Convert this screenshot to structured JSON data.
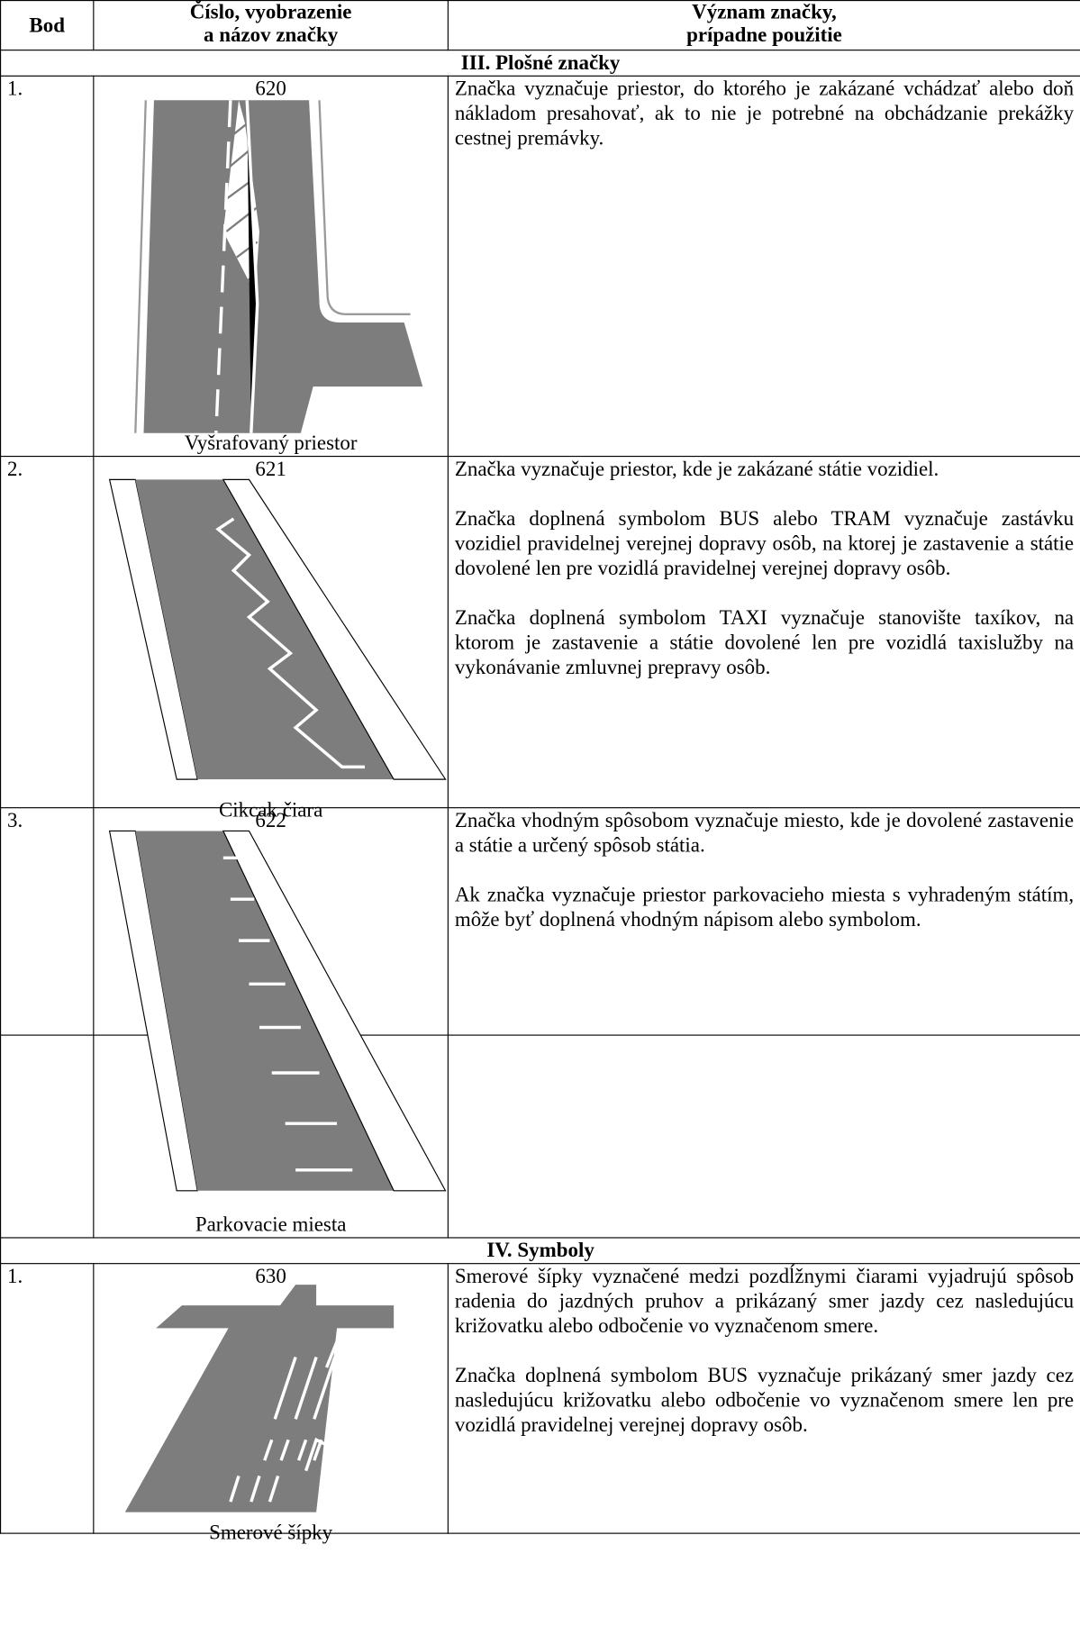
{
  "table": {
    "header": [
      "Bod",
      "Číslo, vyobrazenie\na názov značky",
      "Význam značky,\nprípadne použitie"
    ],
    "sections": [
      {
        "title": "III. Plošné značky",
        "rows": [
          {
            "bod": "1.",
            "number": "620",
            "name": "Vyšrafovaný priestor",
            "text": [
              "Značka vyznačuje priestor, do ktorého je zakázané vchádzať alebo doň nákladom presahovať, ak to nie je potrebné na obchádzanie prekážky cestnej premávky."
            ]
          },
          {
            "bod": "2.",
            "number": "621",
            "name": "Cikcak čiara",
            "text": [
              "Značka vyznačuje priestor, kde je zakázané státie vozidiel.",
              "Značka doplnená symbolom BUS alebo TRAM vyznačuje zastávku vozidiel pravidelnej verejnej dopravy osôb, na ktorej je zastavenie a státie dovolené len pre vozidlá pravidelnej verejnej dopravy osôb.",
              "Značka doplnená symbolom TAXI vyznačuje stanovište taxíkov, na ktorom je zastavenie a státie dovolené len pre vozidlá taxislužby na vykonávanie zmluvnej prepravy osôb."
            ]
          },
          {
            "bod": "3.",
            "number": "622",
            "name": "Parkovacie miesta",
            "text": [
              "Značka vhodným spôsobom vyznačuje miesto, kde je dovolené zastavenie a státie a určený spôsob státia.",
              "Ak značka vyznačuje priestor parkovacieho miesta s vyhradeným státím, môže byť doplnená vhodným nápisom alebo symbolom."
            ]
          }
        ]
      },
      {
        "title": "IV. Symboly",
        "rows": [
          {
            "bod": "1.",
            "number": "630",
            "name": "Smerové šípky",
            "text": [
              "Smerové šípky vyznačené medzi pozdĺžnymi čiarami vyjadrujú spôsob radenia do jazdných pruhov a prikázaný smer jazdy cez nasledujúcu križovatku alebo odbočenie vo vyznačenom smere.",
              "Značka doplnená symbolom BUS vyznačuje prikázaný smer jazdy cez nasledujúcu križovatku alebo odbočenie vo vyznačenom smere len pre vozidlá pravidelnej verejnej dopravy osôb."
            ]
          }
        ]
      }
    ]
  }
}
